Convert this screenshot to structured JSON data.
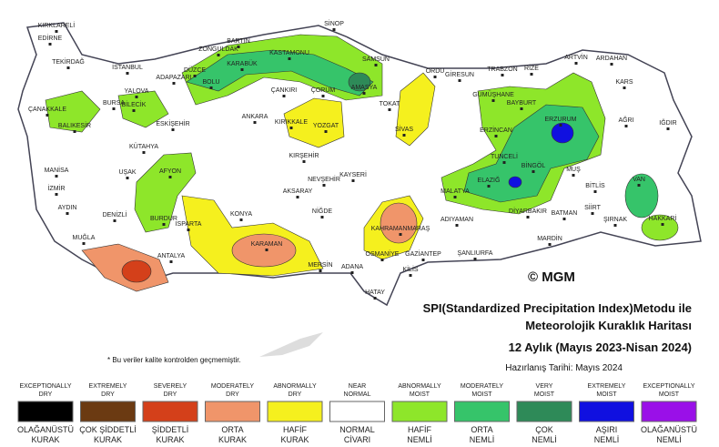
{
  "map": {
    "cities": [
      "KIRKLARELİ",
      "EDİRNE",
      "TEKİRDAĞ",
      "İSTANBUL",
      "BARTIN",
      "ZONGULDAK",
      "KARABÜK",
      "SİNOP",
      "KASTAMONU",
      "SAMSUN",
      "ORDU",
      "GİRESUN",
      "TRABZON",
      "RİZE",
      "ARTVİN",
      "ARDAHAN",
      "KARS",
      "IĞDIR",
      "AĞRI",
      "ADAPAZARI",
      "DÜZCE",
      "BOLU",
      "YALOVA",
      "BURSA",
      "BİLECİK",
      "ÇANAKKALE",
      "BALIKESİR",
      "ESKİŞEHİR",
      "ANKARA",
      "ÇANKIRI",
      "ÇORUM",
      "AMASYA",
      "TOKAT",
      "KIRIKKALE",
      "YOZGAT",
      "SİVAS",
      "GÜMÜŞHANE",
      "BAYBURT",
      "ERZURUM",
      "ERZİNCAN",
      "KÜTAHYA",
      "MANİSA",
      "İZMİR",
      "UŞAK",
      "AFYON",
      "KIRŞEHİR",
      "NEVŞEHİR",
      "KAYSERİ",
      "AKSARAY",
      "NİĞDE",
      "TUNCELİ",
      "BİNGÖL",
      "MUŞ",
      "ELAZIĞ",
      "MALATYA",
      "BİTLİS",
      "VAN",
      "AYDIN",
      "DENİZLİ",
      "BURDUR",
      "ISPARTA",
      "KONYA",
      "KARAMAN",
      "KAHRAMANMARAŞ",
      "ADIYAMAN",
      "DİYARBAKIR",
      "BATMAN",
      "SİİRT",
      "ŞIRNAK",
      "HAKKARİ",
      "MARDİN",
      "ŞANLIURFA",
      "MUĞLA",
      "ANTALYA",
      "MERSİN",
      "ADANA",
      "OSMANİYE",
      "GAZİANTEP",
      "KİLİS",
      "HATAY"
    ],
    "logo": "© MGM",
    "title_lines": [
      "SPI(Standardized Precipitation Index)Metodu ile",
      "Meteorolojik Kuraklık Haritası",
      "12 Aylık (Mayıs 2023-Nisan 2024)"
    ],
    "date": "Hazırlanış Tarihi: Mayıs 2024",
    "note": "* Bu veriler kalite kontrolden geçmemiştir."
  },
  "legend": [
    {
      "top": [
        "EXCEPTIONALLY",
        "DRY"
      ],
      "bottom": [
        "OLAĞANÜSTÜ",
        "KURAK"
      ],
      "color": "#000000"
    },
    {
      "top": [
        "EXTREMELY",
        "DRY"
      ],
      "bottom": [
        "ÇOK ŞİDDETLİ",
        "KURAK"
      ],
      "color": "#6b3a12"
    },
    {
      "top": [
        "SEVERELY",
        "DRY"
      ],
      "bottom": [
        "ŞİDDETLİ",
        "KURAK"
      ],
      "color": "#d4401a"
    },
    {
      "top": [
        "MODERATELY",
        "DRY"
      ],
      "bottom": [
        "ORTA",
        "KURAK"
      ],
      "color": "#f0956a"
    },
    {
      "top": [
        "ABNORMALLY",
        "DRY"
      ],
      "bottom": [
        "HAFİF",
        "KURAK"
      ],
      "color": "#f5f01e"
    },
    {
      "top": [
        "NEAR",
        "NORMAL"
      ],
      "bottom": [
        "NORMAL",
        "CİVARI"
      ],
      "color": "#ffffff"
    },
    {
      "top": [
        "ABNORMALLY",
        "MOIST"
      ],
      "bottom": [
        "HAFİF",
        "NEMLİ"
      ],
      "color": "#8ee62a"
    },
    {
      "top": [
        "MODERATELY",
        "MOIST"
      ],
      "bottom": [
        "ORTA",
        "NEMLİ"
      ],
      "color": "#36c46a"
    },
    {
      "top": [
        "VERY",
        "MOIST"
      ],
      "bottom": [
        "ÇOK",
        "NEMLİ"
      ],
      "color": "#2e8a58"
    },
    {
      "top": [
        "EXTREMELY",
        "MOIST"
      ],
      "bottom": [
        "AŞIRI",
        "NEMLİ"
      ],
      "color": "#1010e0"
    },
    {
      "top": [
        "EXCEPTIONALLY",
        "MOIST"
      ],
      "bottom": [
        "OLAĞANÜSTÜ",
        "NEMLİ"
      ],
      "color": "#9a10e8"
    }
  ]
}
